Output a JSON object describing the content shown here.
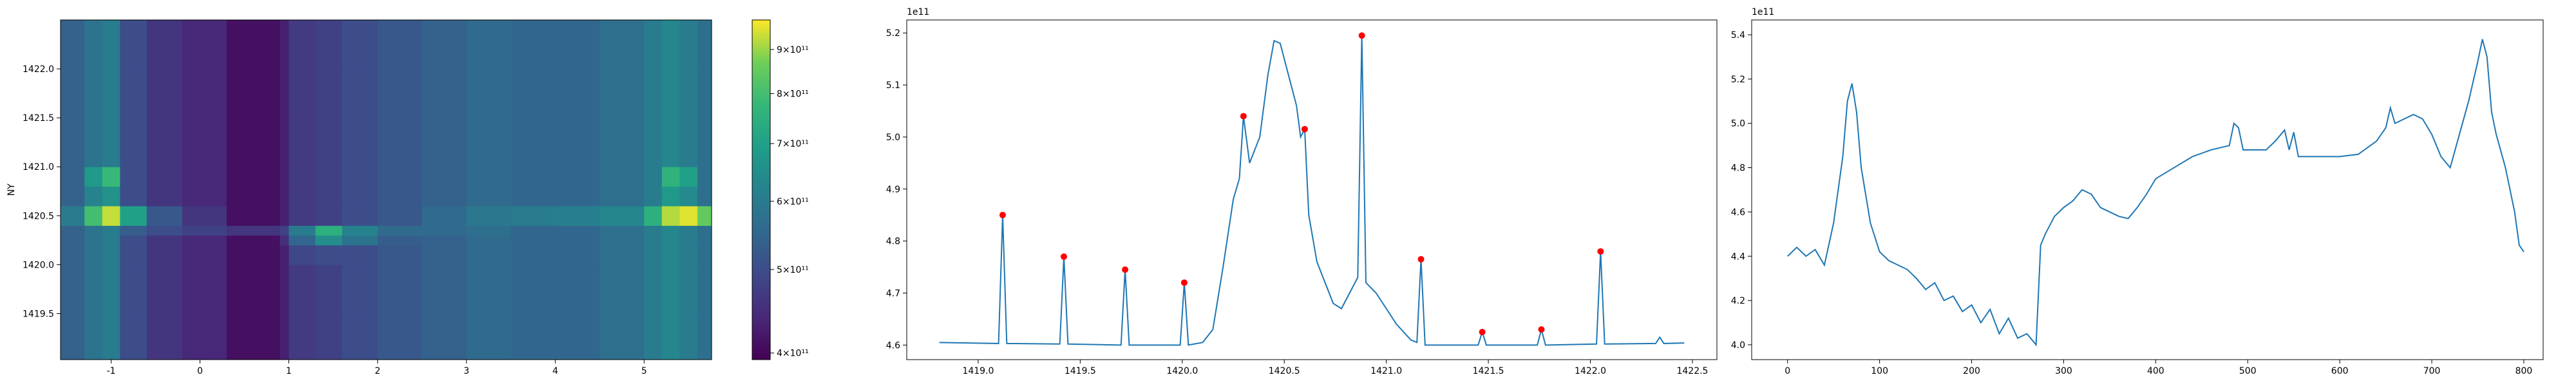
{
  "chart_data": [
    {
      "type": "heatmap",
      "ylabel": "NY",
      "colormap": "viridis",
      "xlim": [
        -1.57,
        5.76
      ],
      "ylim": [
        1419.03,
        1422.5
      ],
      "xticks": [
        -1,
        0,
        1,
        2,
        3,
        4,
        5
      ],
      "yticks": [
        1419.5,
        {
          "value": 1420,
          "label": "1420.0"
        },
        1420.5,
        {
          "value": 1421,
          "label": "1421.0"
        },
        1421.5,
        {
          "value": 1422,
          "label": "1422.0"
        }
      ],
      "x_edges": [
        -1.57,
        -1.3,
        -1.1,
        -0.9,
        -0.6,
        -0.2,
        0.3,
        0.9,
        1.0,
        1.3,
        1.6,
        2.0,
        2.5,
        3.0,
        3.5,
        4.0,
        4.5,
        5.0,
        5.2,
        5.4,
        5.6,
        5.76
      ],
      "y_edges": [
        1419.03,
        1419.5,
        1420.0,
        1420.2,
        1420.3,
        1420.4,
        1420.6,
        1420.8,
        1421.0,
        1421.5,
        1422.0,
        1422.5
      ],
      "z": [
        [
          540000000000.0,
          580000000000.0,
          600000000000.0,
          500000000000.0,
          460000000000.0,
          440000000000.0,
          410000000000.0,
          430000000000.0,
          470000000000.0,
          480000000000.0,
          500000000000.0,
          520000000000.0,
          540000000000.0,
          560000000000.0,
          550000000000.0,
          550000000000.0,
          570000000000.0,
          600000000000.0,
          630000000000.0,
          600000000000.0,
          570000000000.0
        ],
        [
          540000000000.0,
          580000000000.0,
          600000000000.0,
          500000000000.0,
          460000000000.0,
          440000000000.0,
          410000000000.0,
          430000000000.0,
          470000000000.0,
          480000000000.0,
          500000000000.0,
          520000000000.0,
          540000000000.0,
          560000000000.0,
          550000000000.0,
          550000000000.0,
          570000000000.0,
          600000000000.0,
          630000000000.0,
          600000000000.0,
          570000000000.0
        ],
        [
          540000000000.0,
          580000000000.0,
          600000000000.0,
          500000000000.0,
          460000000000.0,
          440000000000.0,
          410000000000.0,
          430000000000.0,
          490000000000.0,
          500000000000.0,
          500000000000.0,
          520000000000.0,
          540000000000.0,
          560000000000.0,
          550000000000.0,
          550000000000.0,
          570000000000.0,
          600000000000.0,
          630000000000.0,
          600000000000.0,
          570000000000.0
        ],
        [
          540000000000.0,
          580000000000.0,
          600000000000.0,
          500000000000.0,
          460000000000.0,
          440000000000.0,
          410000000000.0,
          450000000000.0,
          550000000000.0,
          650000000000.0,
          580000000000.0,
          530000000000.0,
          540000000000.0,
          560000000000.0,
          550000000000.0,
          550000000000.0,
          570000000000.0,
          600000000000.0,
          630000000000.0,
          600000000000.0,
          570000000000.0
        ],
        [
          540000000000.0,
          580000000000.0,
          600000000000.0,
          530000000000.0,
          500000000000.0,
          480000000000.0,
          460000000000.0,
          480000000000.0,
          600000000000.0,
          750000000000.0,
          620000000000.0,
          560000000000.0,
          560000000000.0,
          570000000000.0,
          550000000000.0,
          550000000000.0,
          570000000000.0,
          600000000000.0,
          630000000000.0,
          600000000000.0,
          570000000000.0
        ],
        [
          600000000000.0,
          800000000000.0,
          930000000000.0,
          700000000000.0,
          520000000000.0,
          460000000000.0,
          410000000000.0,
          430000000000.0,
          470000000000.0,
          480000000000.0,
          500000000000.0,
          520000000000.0,
          560000000000.0,
          590000000000.0,
          600000000000.0,
          610000000000.0,
          630000000000.0,
          750000000000.0,
          920000000000.0,
          950000000000.0,
          850000000000.0
        ],
        [
          540000000000.0,
          620000000000.0,
          660000000000.0,
          500000000000.0,
          460000000000.0,
          440000000000.0,
          410000000000.0,
          430000000000.0,
          470000000000.0,
          480000000000.0,
          500000000000.0,
          520000000000.0,
          540000000000.0,
          560000000000.0,
          550000000000.0,
          550000000000.0,
          570000000000.0,
          600000000000.0,
          680000000000.0,
          640000000000.0,
          570000000000.0
        ],
        [
          540000000000.0,
          680000000000.0,
          780000000000.0,
          500000000000.0,
          460000000000.0,
          440000000000.0,
          410000000000.0,
          430000000000.0,
          470000000000.0,
          480000000000.0,
          500000000000.0,
          520000000000.0,
          540000000000.0,
          560000000000.0,
          550000000000.0,
          550000000000.0,
          570000000000.0,
          600000000000.0,
          760000000000.0,
          700000000000.0,
          570000000000.0
        ],
        [
          540000000000.0,
          580000000000.0,
          600000000000.0,
          500000000000.0,
          460000000000.0,
          440000000000.0,
          410000000000.0,
          430000000000.0,
          470000000000.0,
          480000000000.0,
          500000000000.0,
          520000000000.0,
          540000000000.0,
          560000000000.0,
          550000000000.0,
          550000000000.0,
          570000000000.0,
          600000000000.0,
          630000000000.0,
          600000000000.0,
          570000000000.0
        ],
        [
          540000000000.0,
          580000000000.0,
          600000000000.0,
          500000000000.0,
          460000000000.0,
          440000000000.0,
          410000000000.0,
          430000000000.0,
          470000000000.0,
          480000000000.0,
          500000000000.0,
          520000000000.0,
          540000000000.0,
          560000000000.0,
          550000000000.0,
          550000000000.0,
          570000000000.0,
          600000000000.0,
          630000000000.0,
          600000000000.0,
          570000000000.0
        ],
        [
          540000000000.0,
          580000000000.0,
          600000000000.0,
          500000000000.0,
          460000000000.0,
          440000000000.0,
          410000000000.0,
          430000000000.0,
          470000000000.0,
          480000000000.0,
          500000000000.0,
          520000000000.0,
          540000000000.0,
          560000000000.0,
          550000000000.0,
          550000000000.0,
          570000000000.0,
          600000000000.0,
          630000000000.0,
          600000000000.0,
          570000000000.0
        ]
      ],
      "colorbar": {
        "scale": "log",
        "clim": [
          393000000000.0,
          974000000000.0
        ],
        "ticks": [
          {
            "value": 400000000000.0,
            "label": "4×10¹¹"
          },
          {
            "value": 500000000000.0,
            "label": "5×10¹¹"
          },
          {
            "value": 600000000000.0,
            "label": "6×10¹¹"
          },
          {
            "value": 700000000000.0,
            "label": "7×10¹¹"
          },
          {
            "value": 800000000000.0,
            "label": "8×10¹¹"
          },
          {
            "value": 900000000000.0,
            "label": "9×10¹¹"
          }
        ]
      }
    },
    {
      "type": "line",
      "offset_text": "1e11",
      "xlim": [
        1418.65,
        1422.62
      ],
      "ylim": [
        4.572,
        5.225
      ],
      "xticks": [
        {
          "value": 1419,
          "label": "1419.0"
        },
        1419.5,
        {
          "value": 1420,
          "label": "1420.0"
        },
        1420.5,
        {
          "value": 1421,
          "label": "1421.0"
        },
        1421.5,
        {
          "value": 1422,
          "label": "1422.0"
        },
        1422.5
      ],
      "yticks": [
        4.6,
        4.7,
        4.8,
        4.9,
        {
          "value": 5,
          "label": "5.0"
        },
        5.1,
        5.2
      ],
      "x": [
        1418.81,
        1419.1,
        1419.12,
        1419.14,
        1419.4,
        1419.42,
        1419.44,
        1419.7,
        1419.72,
        1419.74,
        1419.99,
        1420.01,
        1420.03,
        1420.1,
        1420.15,
        1420.2,
        1420.25,
        1420.28,
        1420.3,
        1420.33,
        1420.38,
        1420.42,
        1420.45,
        1420.48,
        1420.52,
        1420.56,
        1420.58,
        1420.6,
        1420.62,
        1420.66,
        1420.7,
        1420.74,
        1420.78,
        1420.82,
        1420.86,
        1420.88,
        1420.9,
        1420.95,
        1421.0,
        1421.05,
        1421.12,
        1421.15,
        1421.17,
        1421.19,
        1421.45,
        1421.47,
        1421.49,
        1421.74,
        1421.76,
        1421.78,
        1422.03,
        1422.05,
        1422.07,
        1422.32,
        1422.34,
        1422.36,
        1422.46
      ],
      "series": [
        {
          "color": "#1f77b4",
          "values": [
            4.605,
            4.603,
            4.85,
            4.603,
            4.602,
            4.77,
            4.602,
            4.6,
            4.745,
            4.6,
            4.6,
            4.72,
            4.6,
            4.605,
            4.63,
            4.75,
            4.88,
            4.92,
            5.04,
            4.95,
            5.0,
            5.12,
            5.185,
            5.18,
            5.12,
            5.06,
            5.0,
            5.015,
            4.85,
            4.76,
            4.72,
            4.68,
            4.67,
            4.7,
            4.73,
            5.195,
            4.72,
            4.7,
            4.67,
            4.64,
            4.61,
            4.605,
            4.765,
            4.6,
            4.6,
            4.625,
            4.6,
            4.6,
            4.63,
            4.6,
            4.602,
            4.78,
            4.602,
            4.603,
            4.615,
            4.603,
            4.604
          ]
        }
      ],
      "peaks": {
        "color": "#ff0000",
        "x": [
          1419.12,
          1419.42,
          1419.72,
          1420.01,
          1420.3,
          1420.6,
          1420.88,
          1421.17,
          1421.47,
          1421.76,
          1422.05
        ],
        "values": [
          4.85,
          4.77,
          4.745,
          4.72,
          5.04,
          5.015,
          5.195,
          4.765,
          4.625,
          4.63,
          4.78
        ]
      }
    },
    {
      "type": "line",
      "offset_text": "1e11",
      "xlim": [
        -39,
        821
      ],
      "ylim": [
        3.933,
        5.467
      ],
      "xticks": [
        0,
        100,
        200,
        300,
        400,
        500,
        600,
        700,
        800
      ],
      "yticks": [
        {
          "value": 4,
          "label": "4.0"
        },
        4.2,
        4.4,
        4.6,
        4.8,
        {
          "value": 5,
          "label": "5.0"
        },
        5.2,
        5.4
      ],
      "x": [
        0,
        10,
        20,
        30,
        40,
        50,
        60,
        65,
        70,
        75,
        80,
        90,
        100,
        110,
        120,
        130,
        140,
        150,
        160,
        170,
        180,
        190,
        200,
        210,
        220,
        230,
        240,
        250,
        260,
        270,
        275,
        280,
        290,
        300,
        310,
        320,
        330,
        340,
        350,
        360,
        370,
        380,
        390,
        400,
        420,
        440,
        460,
        480,
        485,
        490,
        495,
        520,
        530,
        540,
        545,
        550,
        555,
        570,
        600,
        620,
        640,
        650,
        655,
        660,
        670,
        680,
        690,
        700,
        710,
        720,
        730,
        740,
        750,
        755,
        760,
        765,
        770,
        780,
        790,
        795,
        800
      ],
      "series": [
        {
          "color": "#1f77b4",
          "values": [
            4.4,
            4.44,
            4.4,
            4.43,
            4.36,
            4.55,
            4.85,
            5.1,
            5.18,
            5.05,
            4.8,
            4.55,
            4.42,
            4.38,
            4.36,
            4.34,
            4.3,
            4.25,
            4.28,
            4.2,
            4.22,
            4.15,
            4.18,
            4.1,
            4.16,
            4.05,
            4.12,
            4.03,
            4.05,
            4.0,
            4.45,
            4.5,
            4.58,
            4.62,
            4.65,
            4.7,
            4.68,
            4.62,
            4.6,
            4.58,
            4.57,
            4.62,
            4.68,
            4.75,
            4.8,
            4.85,
            4.88,
            4.9,
            5.0,
            4.98,
            4.88,
            4.88,
            4.92,
            4.97,
            4.88,
            4.96,
            4.85,
            4.85,
            4.85,
            4.86,
            4.92,
            4.98,
            5.07,
            5.0,
            5.02,
            5.04,
            5.02,
            4.95,
            4.85,
            4.8,
            4.95,
            5.1,
            5.28,
            5.38,
            5.3,
            5.05,
            4.95,
            4.8,
            4.6,
            4.45,
            4.42
          ]
        }
      ]
    }
  ]
}
